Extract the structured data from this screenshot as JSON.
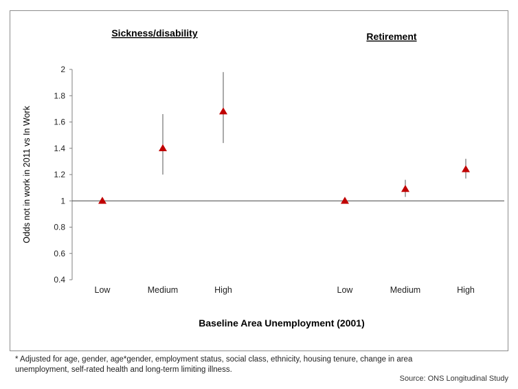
{
  "chart_data": {
    "type": "scatter",
    "panels": [
      {
        "title": "Sickness/disability",
        "points": [
          {
            "x": "Low",
            "y": 1.0,
            "lower": 1.0,
            "upper": 1.0
          },
          {
            "x": "Medium",
            "y": 1.4,
            "lower": 1.2,
            "upper": 1.66
          },
          {
            "x": "High",
            "y": 1.68,
            "lower": 1.44,
            "upper": 1.98
          }
        ]
      },
      {
        "title": "Retirement",
        "points": [
          {
            "x": "Low",
            "y": 1.0,
            "lower": 1.0,
            "upper": 1.0
          },
          {
            "x": "Medium",
            "y": 1.09,
            "lower": 1.03,
            "upper": 1.16
          },
          {
            "x": "High",
            "y": 1.24,
            "lower": 1.17,
            "upper": 1.32
          }
        ]
      }
    ],
    "ylabel": "Odds not in work in 2011 vs In Work",
    "xlabel": "Baseline Area Unemployment (2001)",
    "ylim": [
      0.4,
      2
    ],
    "yticks": [
      "0.4",
      "0.6",
      "0.8",
      "1",
      "1.2",
      "1.4",
      "1.6",
      "1.8",
      "2"
    ],
    "reference_line": 1,
    "marker_color": "#c00000",
    "grid": false
  },
  "footnote": "* Adjusted for age, gender, age*gender, employment status, social class, ethnicity, housing tenure, change in area unemployment, self-rated health and long-term limiting illness.",
  "source": "Source: ONS Longitudinal Study"
}
